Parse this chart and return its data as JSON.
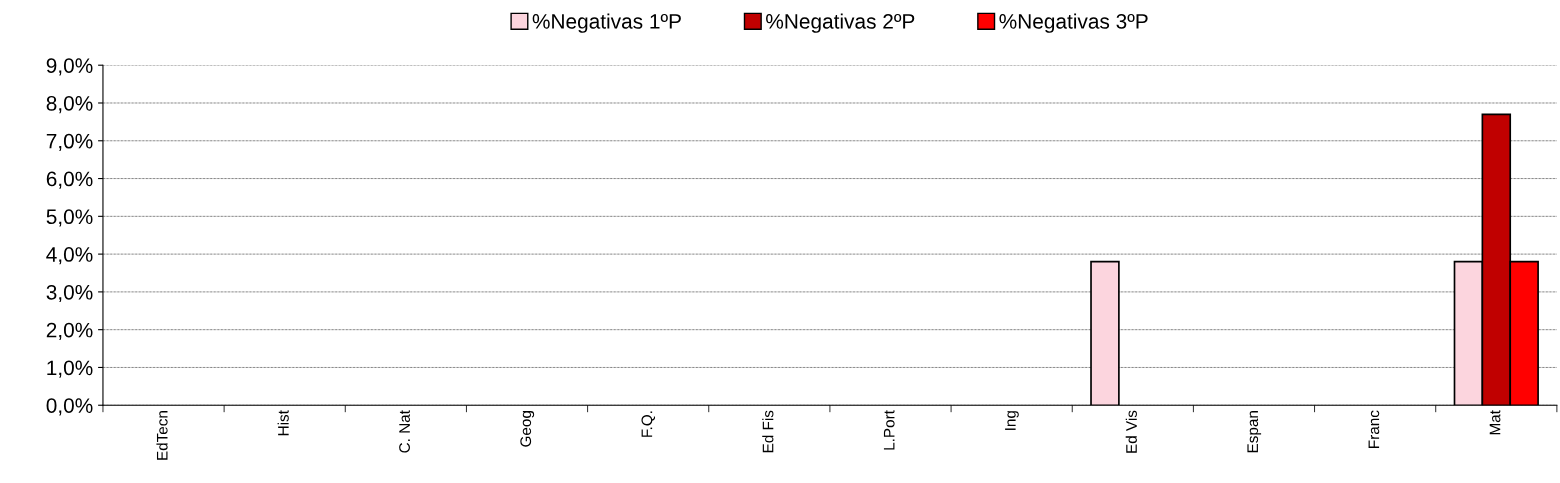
{
  "chart_data": {
    "type": "bar",
    "categories": [
      "EdTecn",
      "Hist",
      "C. Nat",
      "Geog",
      "F.Q.",
      "Ed Fis",
      "L.Port",
      "Ing",
      "Ed Vis",
      "Espan",
      "Franc",
      "Mat"
    ],
    "series": [
      {
        "name": "%Negativas 1ºP",
        "color": "#fcd5de",
        "values": [
          0,
          0,
          0,
          0,
          0,
          0,
          0,
          0,
          3.8,
          0,
          0,
          3.8
        ]
      },
      {
        "name": "%Negativas 2ºP",
        "color": "#c00000",
        "values": [
          0,
          0,
          0,
          0,
          0,
          0,
          0,
          0,
          0,
          0,
          0,
          7.7
        ]
      },
      {
        "name": "%Negativas 3ºP",
        "color": "#ff0000",
        "values": [
          0,
          0,
          0,
          0,
          0,
          0,
          0,
          0,
          0,
          0,
          0,
          3.8
        ]
      }
    ],
    "ylim": [
      0,
      9
    ],
    "yticks": [
      {
        "value": 0,
        "label": "0,0%"
      },
      {
        "value": 1,
        "label": "1,0%"
      },
      {
        "value": 2,
        "label": "2,0%"
      },
      {
        "value": 3,
        "label": "3,0%"
      },
      {
        "value": 4,
        "label": "4,0%"
      },
      {
        "value": 5,
        "label": "5,0%"
      },
      {
        "value": 6,
        "label": "6,0%"
      },
      {
        "value": 7,
        "label": "7,0%"
      },
      {
        "value": 8,
        "label": "8,0%"
      },
      {
        "value": 9,
        "label": "9,0%"
      }
    ],
    "grid": "y",
    "legend": "top"
  }
}
